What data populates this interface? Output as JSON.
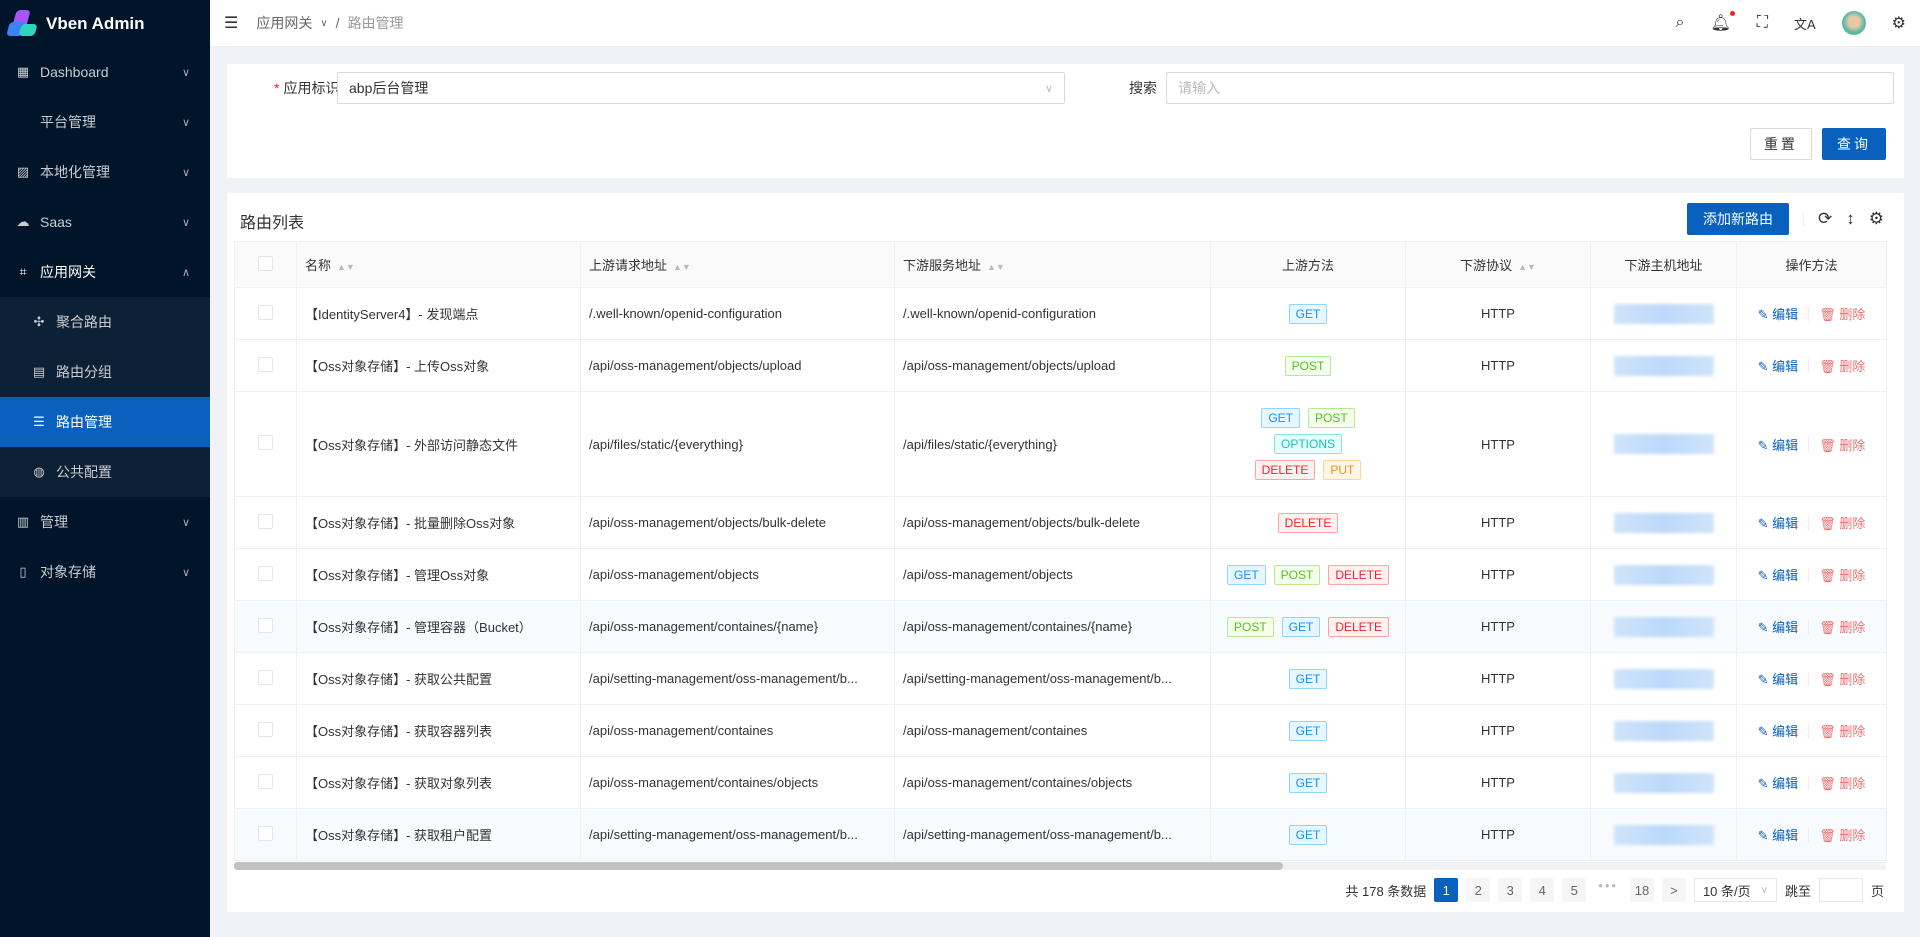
{
  "app": {
    "title": "Vben Admin"
  },
  "sidebar": {
    "items": [
      {
        "label": "Dashboard",
        "icon": "dashboard-icon"
      },
      {
        "label": "平台管理",
        "icon": ""
      },
      {
        "label": "本地化管理",
        "icon": "localization-icon"
      },
      {
        "label": "Saas",
        "icon": "saas-icon"
      },
      {
        "label": "应用网关",
        "icon": "gateway-icon",
        "open": true,
        "children": [
          {
            "label": "聚合路由",
            "icon": "aggregate-icon"
          },
          {
            "label": "路由分组",
            "icon": "group-icon"
          },
          {
            "label": "路由管理",
            "icon": "list-icon",
            "active": true
          },
          {
            "label": "公共配置",
            "icon": "globe-icon"
          }
        ]
      },
      {
        "label": "管理",
        "icon": "manage-icon"
      },
      {
        "label": "对象存储",
        "icon": "file-icon"
      }
    ]
  },
  "header": {
    "breadcrumb": [
      "应用网关",
      "路由管理"
    ]
  },
  "form": {
    "app_label": "应用标识",
    "app_value": "abp后台管理",
    "search_label": "搜索",
    "search_placeholder": "请输入",
    "reset": "重置",
    "query": "查询"
  },
  "table": {
    "title": "路由列表",
    "add_button": "添加新路由",
    "columns": [
      "名称",
      "上游请求地址",
      "下游服务地址",
      "上游方法",
      "下游协议",
      "下游主机地址",
      "操作方法"
    ],
    "edit_label": "编辑",
    "delete_label": "删除",
    "rows": [
      {
        "name": "【IdentityServer4】- 发现端点",
        "up": "/.well-known/openid-configuration",
        "down": "/.well-known/openid-configuration",
        "methods": [
          "GET"
        ],
        "protocol": "HTTP"
      },
      {
        "name": "【Oss对象存储】- 上传Oss对象",
        "up": "/api/oss-management/objects/upload",
        "down": "/api/oss-management/objects/upload",
        "methods": [
          "POST"
        ],
        "protocol": "HTTP"
      },
      {
        "name": "【Oss对象存储】- 外部访问静态文件",
        "up": "/api/files/static/{everything}",
        "down": "/api/files/static/{everything}",
        "methods": [
          "GET",
          "POST",
          "OPTIONS",
          "DELETE",
          "PUT"
        ],
        "protocol": "HTTP"
      },
      {
        "name": "【Oss对象存储】- 批量删除Oss对象",
        "up": "/api/oss-management/objects/bulk-delete",
        "down": "/api/oss-management/objects/bulk-delete",
        "methods": [
          "DELETE"
        ],
        "protocol": "HTTP"
      },
      {
        "name": "【Oss对象存储】- 管理Oss对象",
        "up": "/api/oss-management/objects",
        "down": "/api/oss-management/objects",
        "methods": [
          "GET",
          "POST",
          "DELETE"
        ],
        "protocol": "HTTP"
      },
      {
        "name": "【Oss对象存储】- 管理容器（Bucket）",
        "up": "/api/oss-management/containes/{name}",
        "down": "/api/oss-management/containes/{name}",
        "methods": [
          "POST",
          "GET",
          "DELETE"
        ],
        "protocol": "HTTP"
      },
      {
        "name": "【Oss对象存储】- 获取公共配置",
        "up": "/api/setting-management/oss-management/b...",
        "down": "/api/setting-management/oss-management/b...",
        "methods": [
          "GET"
        ],
        "protocol": "HTTP"
      },
      {
        "name": "【Oss对象存储】- 获取容器列表",
        "up": "/api/oss-management/containes",
        "down": "/api/oss-management/containes",
        "methods": [
          "GET"
        ],
        "protocol": "HTTP"
      },
      {
        "name": "【Oss对象存储】- 获取对象列表",
        "up": "/api/oss-management/containes/objects",
        "down": "/api/oss-management/containes/objects",
        "methods": [
          "GET"
        ],
        "protocol": "HTTP"
      },
      {
        "name": "【Oss对象存储】- 获取租户配置",
        "up": "/api/setting-management/oss-management/b...",
        "down": "/api/setting-management/oss-management/b...",
        "methods": [
          "GET"
        ],
        "protocol": "HTTP"
      }
    ]
  },
  "pagination": {
    "total_text": "共 178 条数据",
    "pages": [
      "1",
      "2",
      "3",
      "4",
      "5",
      "•••",
      "18"
    ],
    "current": "1",
    "next": ">",
    "page_size": "10 条/页",
    "jump_label": "跳至",
    "page_suffix": "页"
  },
  "colors": {
    "primary": "#0960bd",
    "sidebar": "#001529",
    "GET": "#1890ff",
    "POST": "#52c41a",
    "OPTIONS": "#13c2c2",
    "DELETE": "#f5222d",
    "PUT": "#fa8c16"
  }
}
